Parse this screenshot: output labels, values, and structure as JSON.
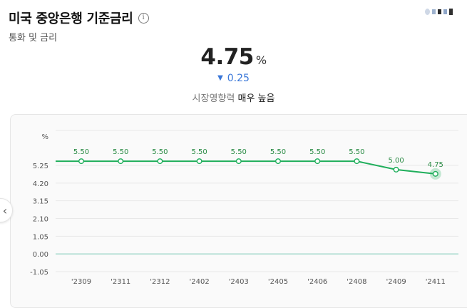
{
  "header": {
    "title": "미국 중앙은행 기준금리",
    "info_icon": "i",
    "subtitle": "통화 및 금리"
  },
  "summary": {
    "value": "4.75",
    "unit": "%",
    "change": "0.25",
    "change_direction": "down",
    "impact_label": "시장영향력",
    "impact_value": "매우 높음"
  },
  "colors": {
    "line": "#1fae5b",
    "change": "#3a77d8",
    "zero_line": "#7ec9b7"
  },
  "chart_data": {
    "type": "line",
    "ylabel": "%",
    "x": [
      "'2309",
      "'2311",
      "'2312",
      "'2402",
      "'2403",
      "'2405",
      "'2406",
      "'2408",
      "'2409",
      "'2411"
    ],
    "y_ticks": [
      "5.25",
      "4.20",
      "3.15",
      "2.10",
      "1.05",
      "0.00",
      "-1.05"
    ],
    "ylim": [
      -1.05,
      5.25
    ],
    "grid": true,
    "series": [
      {
        "values": [
          5.5,
          5.5,
          5.5,
          5.5,
          5.5,
          5.5,
          5.5,
          5.5,
          5.0,
          4.75
        ],
        "labels": [
          "5.50",
          "5.50",
          "5.50",
          "5.50",
          "5.50",
          "5.50",
          "5.50",
          "5.50",
          "5.00",
          "4.75"
        ]
      }
    ]
  }
}
